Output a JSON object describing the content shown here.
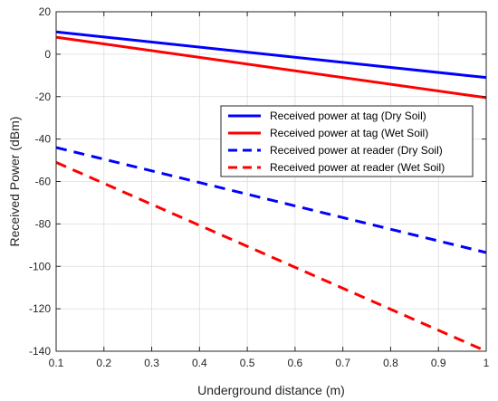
{
  "chart_data": {
    "type": "line",
    "xlabel": "Underground distance (m)",
    "ylabel": "Received Power (dBm)",
    "xlim": [
      0.1,
      1
    ],
    "ylim": [
      -140,
      20
    ],
    "xticks": [
      0.1,
      0.2,
      0.3,
      0.4,
      0.5,
      0.6,
      0.7,
      0.8,
      0.9,
      1
    ],
    "xtick_labels": [
      "0.1",
      "0.2",
      "0.3",
      "0.4",
      "0.5",
      "0.6",
      "0.7",
      "0.8",
      "0.9",
      "1"
    ],
    "yticks": [
      -140,
      -120,
      -100,
      -80,
      -60,
      -40,
      -20,
      0,
      20
    ],
    "ytick_labels": [
      "-140",
      "-120",
      "-100",
      "-80",
      "-60",
      "-40",
      "-20",
      "0",
      "20"
    ],
    "grid": true,
    "legend_position": "center-right",
    "series": [
      {
        "name": "Received power at tag (Dry Soil)",
        "color": "#0000ff",
        "style": "solid",
        "x": [
          0.1,
          1
        ],
        "y": [
          10.5,
          -11
        ]
      },
      {
        "name": "Received power at tag (Wet Soil)",
        "color": "#ff0000",
        "style": "solid",
        "x": [
          0.1,
          1
        ],
        "y": [
          8,
          -20.5
        ]
      },
      {
        "name": "Received power at reader (Dry Soil)",
        "color": "#0000ff",
        "style": "dashed",
        "x": [
          0.1,
          1
        ],
        "y": [
          -44,
          -93.5
        ]
      },
      {
        "name": "Received power at reader (Wet Soil)",
        "color": "#ff0000",
        "style": "dashed",
        "x": [
          0.1,
          1
        ],
        "y": [
          -51,
          -140
        ]
      }
    ]
  }
}
